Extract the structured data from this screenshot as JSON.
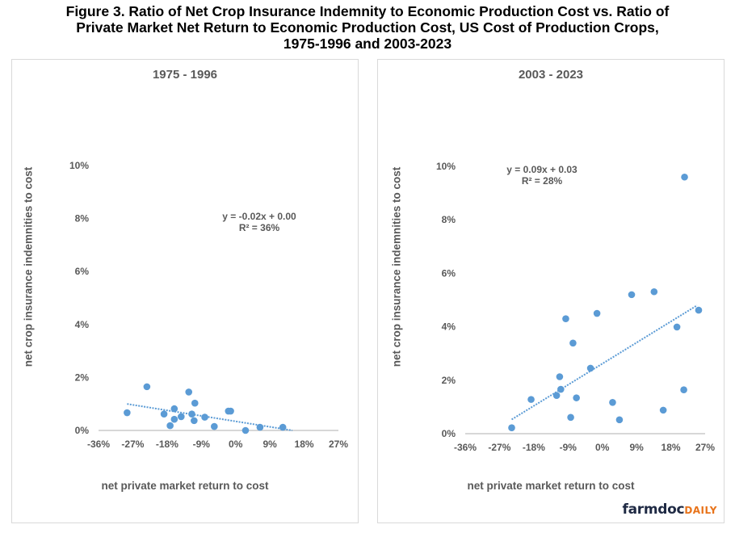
{
  "figure": {
    "title_line1": "Figure 3. Ratio of Net Crop Insurance Indemnity to Economic Production Cost vs. Ratio of",
    "title_line2": "Private Market Net Return to Economic Production Cost, US Cost of Production Crops,",
    "title_line3": "1975-1996 and 2003-2023"
  },
  "branding": {
    "logo_main": "farmdoc",
    "logo_accent": "DAILY",
    "accent_color": "#e8731a",
    "main_color": "#1f2a44"
  },
  "chart_data": [
    {
      "type": "scatter",
      "title": "1975 - 1996",
      "xlabel": "net private market return to cost",
      "ylabel": "net crop insurance indemnities to cost",
      "xlim": [
        -36,
        27
      ],
      "ylim": [
        0,
        10
      ],
      "xticks": [
        -36,
        -27,
        -18,
        -9,
        0,
        9,
        18,
        27
      ],
      "yticks": [
        0,
        2,
        4,
        6,
        8,
        10
      ],
      "xtick_labels": [
        "-36%",
        "-27%",
        "-18%",
        "-9%",
        "0%",
        "9%",
        "18%",
        "27%"
      ],
      "ytick_labels": [
        "0%",
        "2%",
        "4%",
        "6%",
        "8%",
        "10%"
      ],
      "grid": false,
      "marker_color": "#5b9bd5",
      "points": [
        {
          "x": -28.5,
          "y": 0.67
        },
        {
          "x": -23.3,
          "y": 1.65
        },
        {
          "x": -18.8,
          "y": 0.62
        },
        {
          "x": -17.2,
          "y": 0.18
        },
        {
          "x": -16.1,
          "y": 0.82
        },
        {
          "x": -16.1,
          "y": 0.42
        },
        {
          "x": -14.3,
          "y": 0.52
        },
        {
          "x": -12.3,
          "y": 1.45
        },
        {
          "x": -11.5,
          "y": 0.62
        },
        {
          "x": -10.7,
          "y": 1.03
        },
        {
          "x": -10.9,
          "y": 0.37
        },
        {
          "x": -8.1,
          "y": 0.5
        },
        {
          "x": -5.6,
          "y": 0.15
        },
        {
          "x": -1.9,
          "y": 0.73
        },
        {
          "x": -1.3,
          "y": 0.73
        },
        {
          "x": 2.6,
          "y": 0.0
        },
        {
          "x": 6.4,
          "y": 0.12
        },
        {
          "x": 12.4,
          "y": 0.12
        }
      ],
      "trendline": {
        "style": "dotted",
        "x_start": -28.5,
        "y_start": 1.0,
        "x_end": 14.9,
        "y_end": 0.0
      },
      "equation": "y = -0.02x + 0.00",
      "r_squared": "R² = 36%"
    },
    {
      "type": "scatter",
      "title": "2003 - 2023",
      "xlabel": "net private market return to cost",
      "ylabel": "net crop insurance indemnities to cost",
      "xlim": [
        -36,
        27
      ],
      "ylim": [
        0,
        10
      ],
      "xticks": [
        -36,
        -27,
        -18,
        -9,
        0,
        9,
        18,
        27
      ],
      "yticks": [
        0,
        2,
        4,
        6,
        8,
        10
      ],
      "xtick_labels": [
        "-36%",
        "-27%",
        "-18%",
        "-9%",
        "0%",
        "9%",
        "18%",
        "27%"
      ],
      "ytick_labels": [
        "0%",
        "2%",
        "4%",
        "6%",
        "8%",
        "10%"
      ],
      "grid": false,
      "marker_color": "#5b9bd5",
      "points": [
        {
          "x": -23.8,
          "y": 0.22
        },
        {
          "x": -18.7,
          "y": 1.28
        },
        {
          "x": -12.0,
          "y": 1.43
        },
        {
          "x": -11.2,
          "y": 2.13
        },
        {
          "x": -10.9,
          "y": 1.66
        },
        {
          "x": -9.6,
          "y": 4.3
        },
        {
          "x": -8.3,
          "y": 0.61
        },
        {
          "x": -7.7,
          "y": 3.39
        },
        {
          "x": -6.8,
          "y": 1.34
        },
        {
          "x": -3.1,
          "y": 2.45
        },
        {
          "x": -1.4,
          "y": 4.5
        },
        {
          "x": 2.7,
          "y": 1.17
        },
        {
          "x": 4.5,
          "y": 0.52
        },
        {
          "x": 7.7,
          "y": 5.2
        },
        {
          "x": 13.6,
          "y": 5.31
        },
        {
          "x": 16.0,
          "y": 0.88
        },
        {
          "x": 19.6,
          "y": 3.99
        },
        {
          "x": 21.4,
          "y": 1.64
        },
        {
          "x": 21.6,
          "y": 9.6
        },
        {
          "x": 25.3,
          "y": 4.62
        }
      ],
      "trendline": {
        "style": "dotted",
        "x_start": -23.8,
        "y_start": 0.53,
        "x_end": 24.9,
        "y_end": 4.8
      },
      "equation": "y = 0.09x + 0.03",
      "r_squared": "R² = 28%"
    }
  ]
}
